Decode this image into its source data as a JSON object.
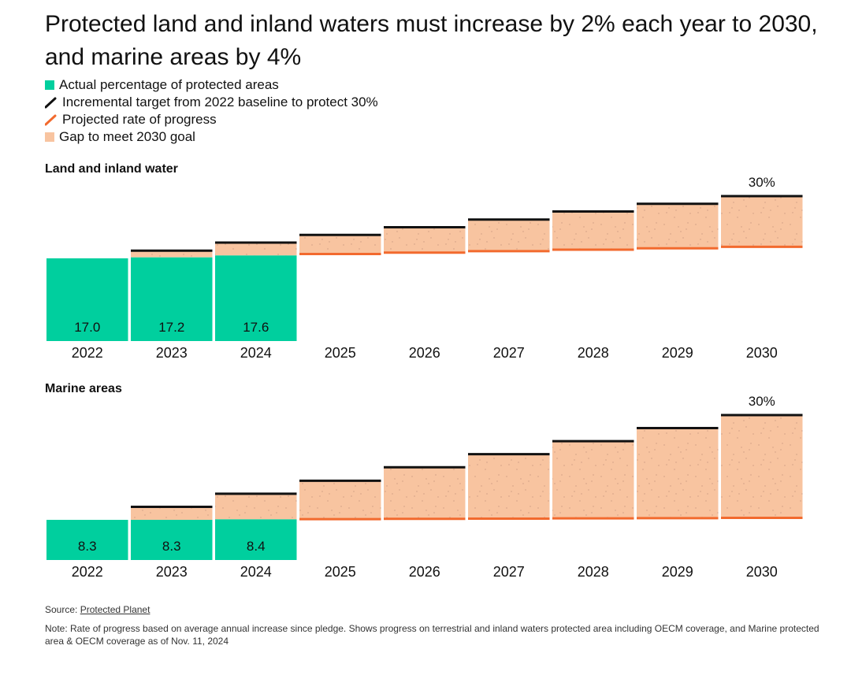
{
  "title": "Protected land and inland waters must increase by 2% each year to 2030, and marine areas by 4%",
  "legend": {
    "actual": "Actual percentage of protected areas",
    "target": "Incremental target from 2022 baseline to protect 30%",
    "projected": "Projected rate of progress",
    "gap": "Gap to meet 2030 goal"
  },
  "colors": {
    "actual": "#00cf9e",
    "gap": "#f8c4a0",
    "target": "#111111",
    "projected": "#f26a2e"
  },
  "chart_data": [
    {
      "type": "bar",
      "title": "Land and inland water",
      "categories": [
        "2022",
        "2023",
        "2024",
        "2025",
        "2026",
        "2027",
        "2028",
        "2029",
        "2030"
      ],
      "series": [
        {
          "name": "Actual percentage of protected areas",
          "values": [
            17.0,
            17.2,
            17.6,
            null,
            null,
            null,
            null,
            null,
            null
          ]
        },
        {
          "name": "Incremental target from 2022 baseline to protect 30%",
          "values": [
            17.0,
            18.6,
            20.3,
            21.9,
            23.5,
            25.1,
            26.8,
            28.4,
            30.0
          ]
        },
        {
          "name": "Projected rate of progress",
          "values": [
            17.0,
            17.2,
            17.6,
            17.9,
            18.2,
            18.5,
            18.8,
            19.1,
            19.4
          ]
        }
      ],
      "data_labels": [
        "17.0",
        "17.2",
        "17.6"
      ],
      "end_label": "30%",
      "ylim": [
        0,
        30
      ]
    },
    {
      "type": "bar",
      "title": "Marine areas",
      "categories": [
        "2022",
        "2023",
        "2024",
        "2025",
        "2026",
        "2027",
        "2028",
        "2029",
        "2030"
      ],
      "series": [
        {
          "name": "Actual percentage of protected areas",
          "values": [
            8.3,
            8.3,
            8.4,
            null,
            null,
            null,
            null,
            null,
            null
          ]
        },
        {
          "name": "Incremental target from 2022 baseline to protect 30%",
          "values": [
            8.3,
            11.0,
            13.7,
            16.4,
            19.2,
            21.9,
            24.6,
            27.3,
            30.0
          ]
        },
        {
          "name": "Projected rate of progress",
          "values": [
            8.3,
            8.3,
            8.4,
            8.45,
            8.5,
            8.55,
            8.6,
            8.65,
            8.7
          ]
        }
      ],
      "data_labels": [
        "8.3",
        "8.3",
        "8.4"
      ],
      "end_label": "30%",
      "ylim": [
        0,
        30
      ]
    }
  ],
  "source_label": "Source:",
  "source_link": "Protected Planet",
  "note": "Note: Rate of progress based on average annual increase since pledge. Shows progress on terrestrial and inland waters protected area including OECM coverage, and Marine protected area & OECM coverage as of Nov. 11, 2024"
}
